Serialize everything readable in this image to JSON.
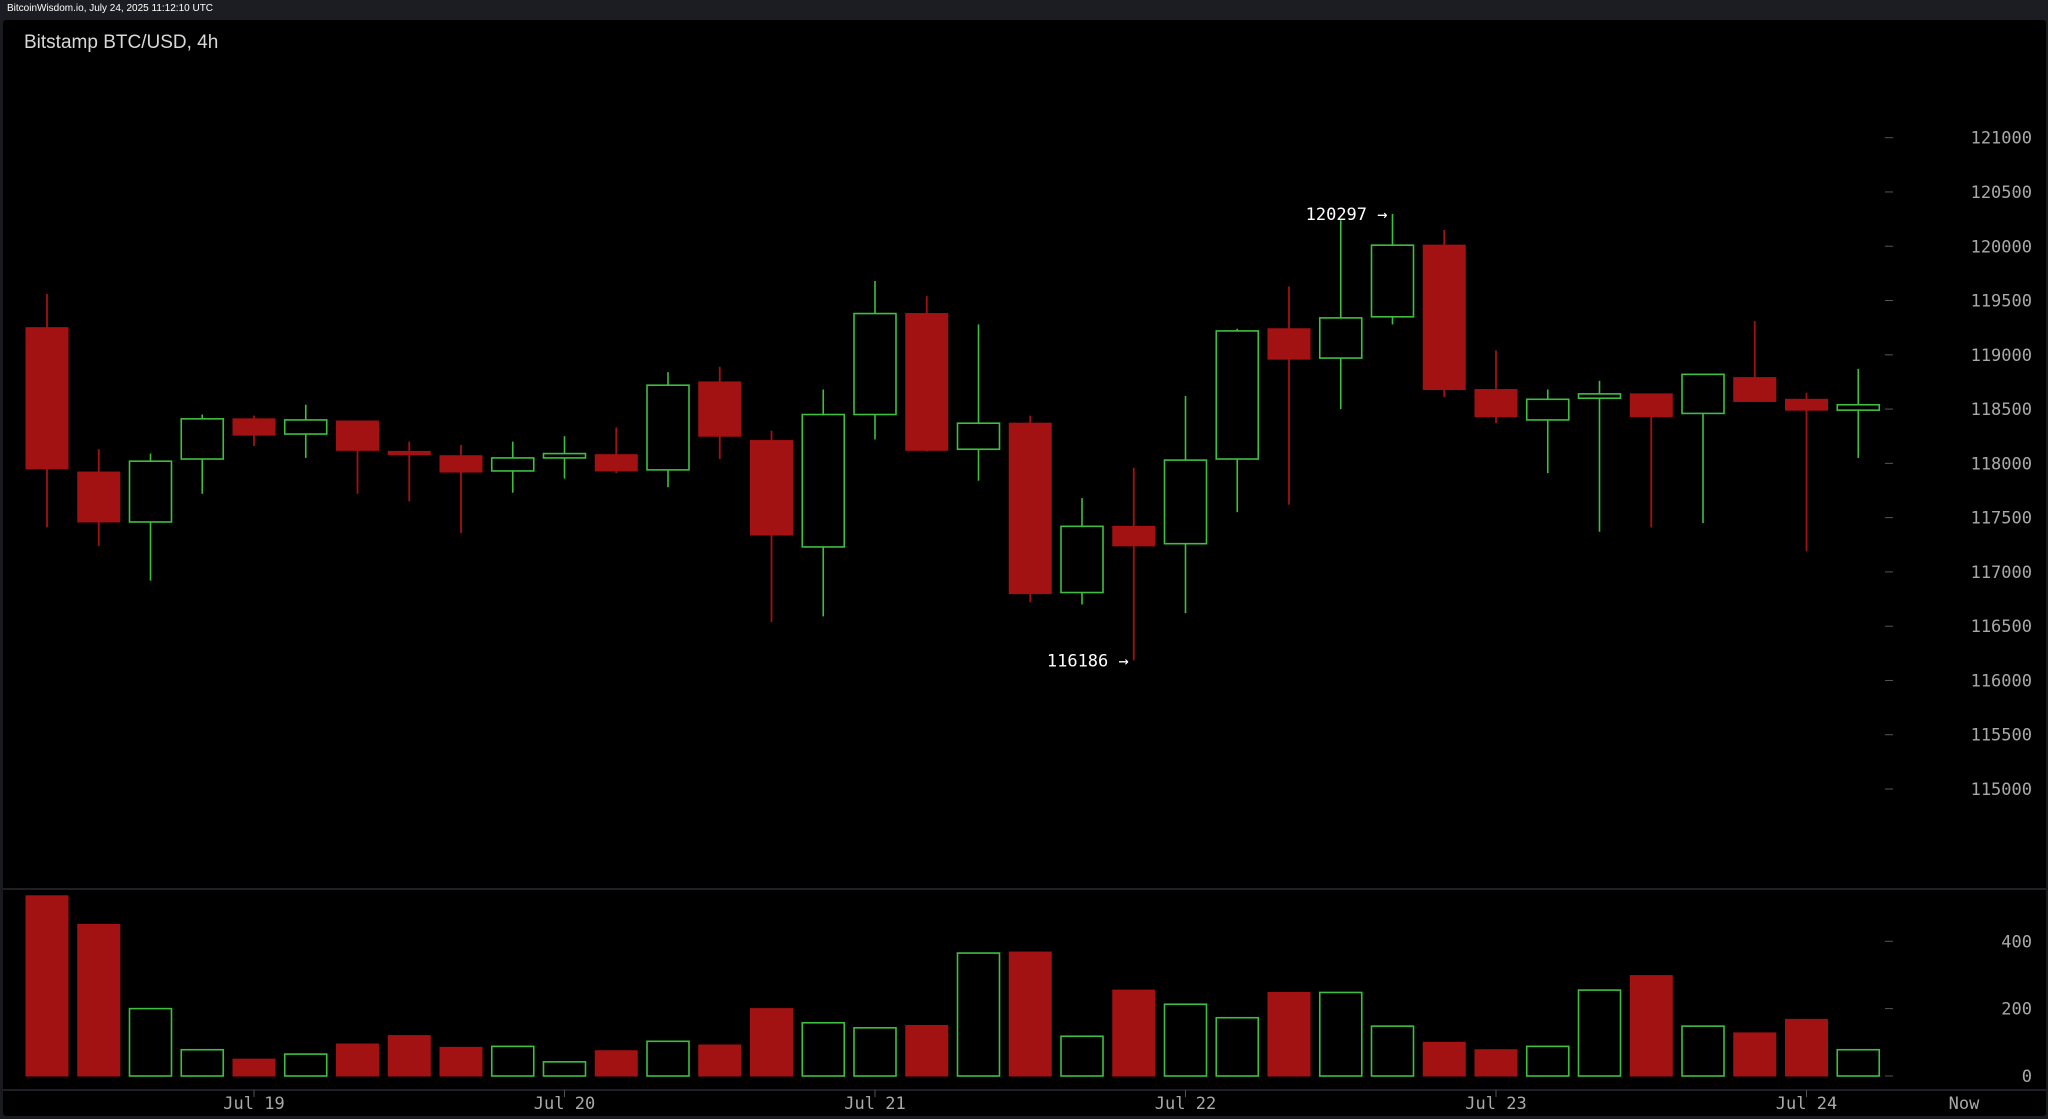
{
  "header": {
    "source": "BitcoinWisdom.io, July 24, 2025 11:12:10 UTC"
  },
  "chart_data": {
    "type": "candlestick",
    "title": "Bitstamp BTC/USD, 4h",
    "colors": {
      "up": "#3fbf3f",
      "down": "#a31212",
      "background": "#000000",
      "text": "#a9a9a9"
    },
    "price_axis": {
      "ylim": [
        114300,
        121900
      ],
      "ticks": [
        115000,
        115500,
        116000,
        116500,
        117000,
        117500,
        118000,
        118500,
        119000,
        119500,
        120000,
        120500,
        121000
      ]
    },
    "volume_axis": {
      "ylim": [
        0,
        570
      ],
      "ticks": [
        0,
        200,
        400
      ]
    },
    "x_labels": [
      {
        "text": "Jul 19",
        "index": 4
      },
      {
        "text": "Jul 20",
        "index": 10
      },
      {
        "text": "Jul 21",
        "index": 16
      },
      {
        "text": "Jul 22",
        "index": 22
      },
      {
        "text": "Jul 23",
        "index": 28
      },
      {
        "text": "Jul 24",
        "index": 34
      },
      {
        "text": "Now",
        "index": 37
      }
    ],
    "candles": [
      {
        "o": 119250,
        "h": 119560,
        "l": 117410,
        "c": 117950,
        "v": 535
      },
      {
        "o": 117920,
        "h": 118130,
        "l": 117240,
        "c": 117460,
        "v": 450
      },
      {
        "o": 117460,
        "h": 118090,
        "l": 116920,
        "c": 118020,
        "v": 200
      },
      {
        "o": 118040,
        "h": 118450,
        "l": 117720,
        "c": 118410,
        "v": 78
      },
      {
        "o": 118410,
        "h": 118440,
        "l": 118160,
        "c": 118260,
        "v": 50
      },
      {
        "o": 118270,
        "h": 118540,
        "l": 118050,
        "c": 118400,
        "v": 65
      },
      {
        "o": 118390,
        "h": 118390,
        "l": 117720,
        "c": 118120,
        "v": 95
      },
      {
        "o": 118110,
        "h": 118200,
        "l": 117650,
        "c": 118080,
        "v": 120
      },
      {
        "o": 118070,
        "h": 118170,
        "l": 117360,
        "c": 117920,
        "v": 85
      },
      {
        "o": 117930,
        "h": 118200,
        "l": 117730,
        "c": 118050,
        "v": 88
      },
      {
        "o": 118050,
        "h": 118250,
        "l": 117860,
        "c": 118090,
        "v": 42
      },
      {
        "o": 118080,
        "h": 118330,
        "l": 117910,
        "c": 117930,
        "v": 75
      },
      {
        "o": 117940,
        "h": 118840,
        "l": 117780,
        "c": 118720,
        "v": 103
      },
      {
        "o": 118750,
        "h": 118890,
        "l": 118040,
        "c": 118250,
        "v": 92
      },
      {
        "o": 118210,
        "h": 118300,
        "l": 116540,
        "c": 117340,
        "v": 200
      },
      {
        "o": 117230,
        "h": 118680,
        "l": 116590,
        "c": 118450,
        "v": 158
      },
      {
        "o": 118450,
        "h": 119680,
        "l": 118220,
        "c": 119380,
        "v": 143
      },
      {
        "o": 119380,
        "h": 119540,
        "l": 118110,
        "c": 118120,
        "v": 150
      },
      {
        "o": 118130,
        "h": 119280,
        "l": 117840,
        "c": 118370,
        "v": 365
      },
      {
        "o": 118370,
        "h": 118440,
        "l": 116720,
        "c": 116800,
        "v": 368
      },
      {
        "o": 116810,
        "h": 117680,
        "l": 116700,
        "c": 117420,
        "v": 118
      },
      {
        "o": 117420,
        "h": 117960,
        "l": 116186,
        "c": 117240,
        "v": 255
      },
      {
        "o": 117260,
        "h": 118620,
        "l": 116620,
        "c": 118030,
        "v": 213
      },
      {
        "o": 118040,
        "h": 119240,
        "l": 117550,
        "c": 119220,
        "v": 173
      },
      {
        "o": 119240,
        "h": 119630,
        "l": 117620,
        "c": 118960,
        "v": 248
      },
      {
        "o": 118970,
        "h": 120240,
        "l": 118500,
        "c": 119340,
        "v": 248
      },
      {
        "o": 119350,
        "h": 120297,
        "l": 119280,
        "c": 120010,
        "v": 148
      },
      {
        "o": 120010,
        "h": 120150,
        "l": 118610,
        "c": 118680,
        "v": 100
      },
      {
        "o": 118680,
        "h": 119040,
        "l": 118370,
        "c": 118430,
        "v": 78
      },
      {
        "o": 118400,
        "h": 118680,
        "l": 117910,
        "c": 118590,
        "v": 88
      },
      {
        "o": 118600,
        "h": 118760,
        "l": 117370,
        "c": 118640,
        "v": 255
      },
      {
        "o": 118640,
        "h": 118640,
        "l": 117410,
        "c": 118430,
        "v": 298
      },
      {
        "o": 118460,
        "h": 118820,
        "l": 117450,
        "c": 118820,
        "v": 148
      },
      {
        "o": 118790,
        "h": 119310,
        "l": 118570,
        "c": 118570,
        "v": 128
      },
      {
        "o": 118590,
        "h": 118650,
        "l": 117190,
        "c": 118490,
        "v": 168
      },
      {
        "o": 118490,
        "h": 118870,
        "l": 118050,
        "c": 118540,
        "v": 78
      }
    ],
    "annotations": [
      {
        "text": "120297 →",
        "index": 26,
        "price": 120297,
        "side": "left"
      },
      {
        "text": "116186 →",
        "index": 21,
        "price": 116186,
        "side": "left"
      }
    ]
  }
}
